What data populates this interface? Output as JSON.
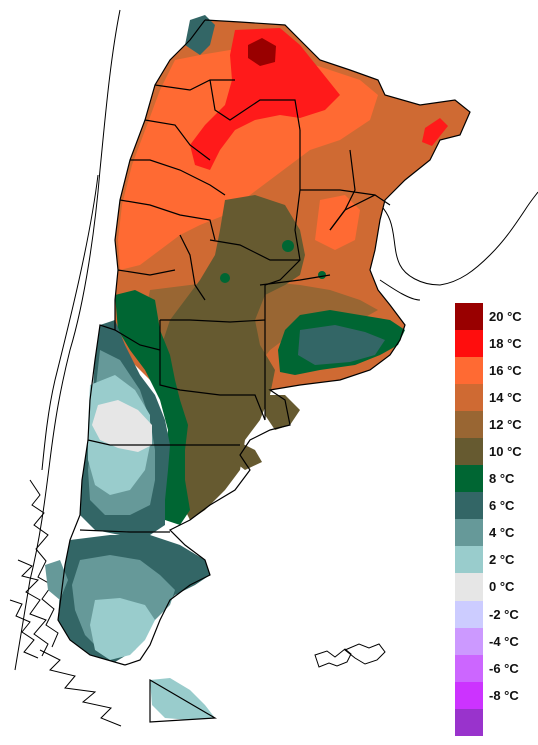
{
  "legend": {
    "items": [
      {
        "label": "20 °C",
        "color": "#990000"
      },
      {
        "label": "18 °C",
        "color": "#ff0d0d"
      },
      {
        "label": "16 °C",
        "color": "#ff6a33"
      },
      {
        "label": "14 °C",
        "color": "#cf6a33"
      },
      {
        "label": "12 °C",
        "color": "#996633"
      },
      {
        "label": "10 °C",
        "color": "#665a30"
      },
      {
        "label": "8 °C",
        "color": "#006633"
      },
      {
        "label": "6 °C",
        "color": "#336666"
      },
      {
        "label": "4 °C",
        "color": "#669999"
      },
      {
        "label": "2 °C",
        "color": "#99cccc"
      },
      {
        "label": "0 °C",
        "color": "#e6e6e6"
      },
      {
        "label": "-2 °C",
        "color": "#ccccff"
      },
      {
        "label": "-4 °C",
        "color": "#cc99ff"
      },
      {
        "label": "-6 °C",
        "color": "#cc66ff"
      },
      {
        "label": "-8 °C",
        "color": "#cc33ff"
      },
      {
        "label": "",
        "color": "#9933cc"
      }
    ]
  }
}
